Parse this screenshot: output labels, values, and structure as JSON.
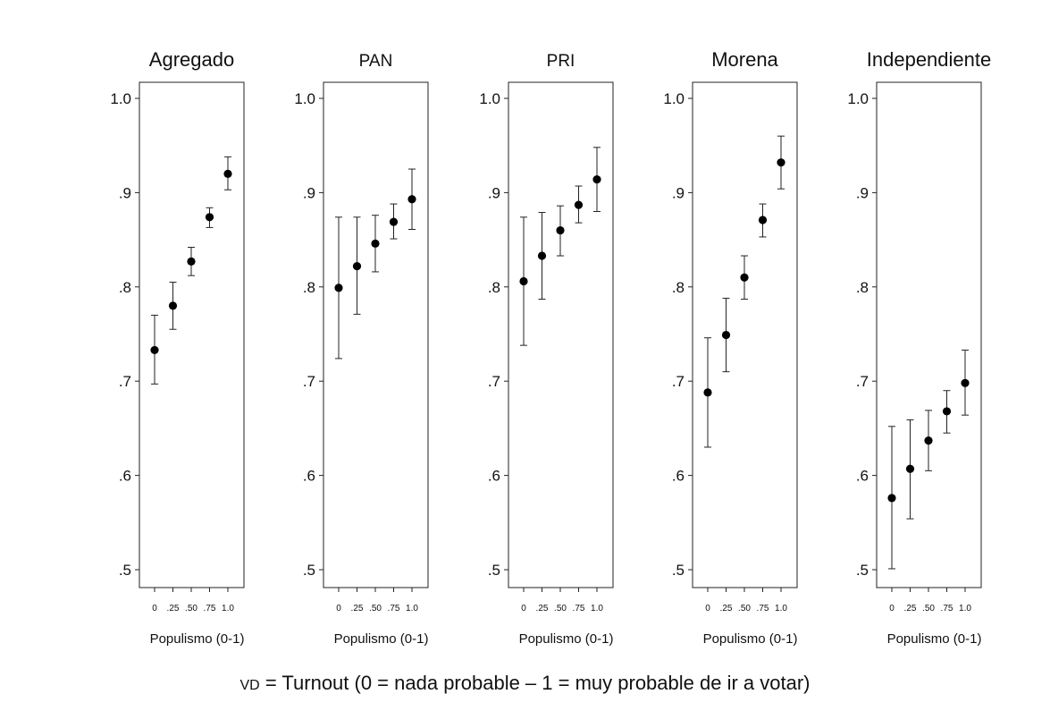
{
  "chart_data": [
    {
      "type": "scatter",
      "title": "Agregado",
      "xlabel": "Populismo (0-1)",
      "x_ticks": [
        "0",
        ".25",
        ".50",
        ".75",
        "1.0"
      ],
      "y_ticks": [
        "1.0",
        ".9",
        ".8",
        ".7",
        ".6",
        ".5"
      ],
      "ylim": [
        0.5,
        1.0
      ],
      "error_bars": true,
      "points": [
        {
          "x": 0,
          "y": 0.733,
          "low": 0.697,
          "high": 0.77
        },
        {
          "x": 0.25,
          "y": 0.78,
          "low": 0.755,
          "high": 0.805
        },
        {
          "x": 0.5,
          "y": 0.827,
          "low": 0.812,
          "high": 0.842
        },
        {
          "x": 0.75,
          "y": 0.874,
          "low": 0.863,
          "high": 0.884
        },
        {
          "x": 1.0,
          "y": 0.92,
          "low": 0.903,
          "high": 0.938
        }
      ]
    },
    {
      "type": "scatter",
      "title": "PAN",
      "xlabel": "Populismo (0-1)",
      "x_ticks": [
        "0",
        ".25",
        ".50",
        ".75",
        "1.0"
      ],
      "y_ticks": [
        "1.0",
        ".9",
        ".8",
        ".7",
        ".6",
        ".5"
      ],
      "ylim": [
        0.5,
        1.0
      ],
      "error_bars": true,
      "points": [
        {
          "x": 0,
          "y": 0.799,
          "low": 0.724,
          "high": 0.874
        },
        {
          "x": 0.25,
          "y": 0.822,
          "low": 0.771,
          "high": 0.874
        },
        {
          "x": 0.5,
          "y": 0.846,
          "low": 0.816,
          "high": 0.876
        },
        {
          "x": 0.75,
          "y": 0.869,
          "low": 0.851,
          "high": 0.888
        },
        {
          "x": 1.0,
          "y": 0.893,
          "low": 0.861,
          "high": 0.925
        }
      ]
    },
    {
      "type": "scatter",
      "title": "PRI",
      "xlabel": "Populismo (0-1)",
      "x_ticks": [
        "0",
        ".25",
        ".50",
        ".75",
        "1.0"
      ],
      "y_ticks": [
        "1.0",
        ".9",
        ".8",
        ".7",
        ".6",
        ".5"
      ],
      "ylim": [
        0.5,
        1.0
      ],
      "error_bars": true,
      "points": [
        {
          "x": 0,
          "y": 0.806,
          "low": 0.738,
          "high": 0.874
        },
        {
          "x": 0.25,
          "y": 0.833,
          "low": 0.787,
          "high": 0.879
        },
        {
          "x": 0.5,
          "y": 0.86,
          "low": 0.833,
          "high": 0.886
        },
        {
          "x": 0.75,
          "y": 0.887,
          "low": 0.868,
          "high": 0.907
        },
        {
          "x": 1.0,
          "y": 0.914,
          "low": 0.88,
          "high": 0.948
        }
      ]
    },
    {
      "type": "scatter",
      "title": "Morena",
      "xlabel": "Populismo (0-1)",
      "x_ticks": [
        "0",
        ".25",
        ".50",
        ".75",
        "1.0"
      ],
      "y_ticks": [
        "1.0",
        ".9",
        ".8",
        ".7",
        ".6",
        ".5"
      ],
      "ylim": [
        0.5,
        1.0
      ],
      "error_bars": true,
      "points": [
        {
          "x": 0,
          "y": 0.688,
          "low": 0.63,
          "high": 0.746
        },
        {
          "x": 0.25,
          "y": 0.749,
          "low": 0.71,
          "high": 0.788
        },
        {
          "x": 0.5,
          "y": 0.81,
          "low": 0.787,
          "high": 0.833
        },
        {
          "x": 0.75,
          "y": 0.871,
          "low": 0.853,
          "high": 0.888
        },
        {
          "x": 1.0,
          "y": 0.932,
          "low": 0.904,
          "high": 0.96
        }
      ]
    },
    {
      "type": "scatter",
      "title": "Independiente",
      "xlabel": "Populismo (0-1)",
      "x_ticks": [
        "0",
        ".25",
        ".50",
        ".75",
        "1.0"
      ],
      "y_ticks": [
        "1.0",
        ".9",
        ".8",
        ".7",
        ".6",
        ".5"
      ],
      "ylim": [
        0.5,
        1.0
      ],
      "error_bars": true,
      "points": [
        {
          "x": 0,
          "y": 0.576,
          "low": 0.501,
          "high": 0.652
        },
        {
          "x": 0.25,
          "y": 0.607,
          "low": 0.554,
          "high": 0.659
        },
        {
          "x": 0.5,
          "y": 0.637,
          "low": 0.605,
          "high": 0.669
        },
        {
          "x": 0.75,
          "y": 0.668,
          "low": 0.645,
          "high": 0.69
        },
        {
          "x": 1.0,
          "y": 0.698,
          "low": 0.664,
          "high": 0.733
        }
      ]
    }
  ],
  "caption": {
    "prefix": "VD",
    "text": " = Turnout (0 = nada probable – 1 = muy probable de ir a votar)"
  }
}
